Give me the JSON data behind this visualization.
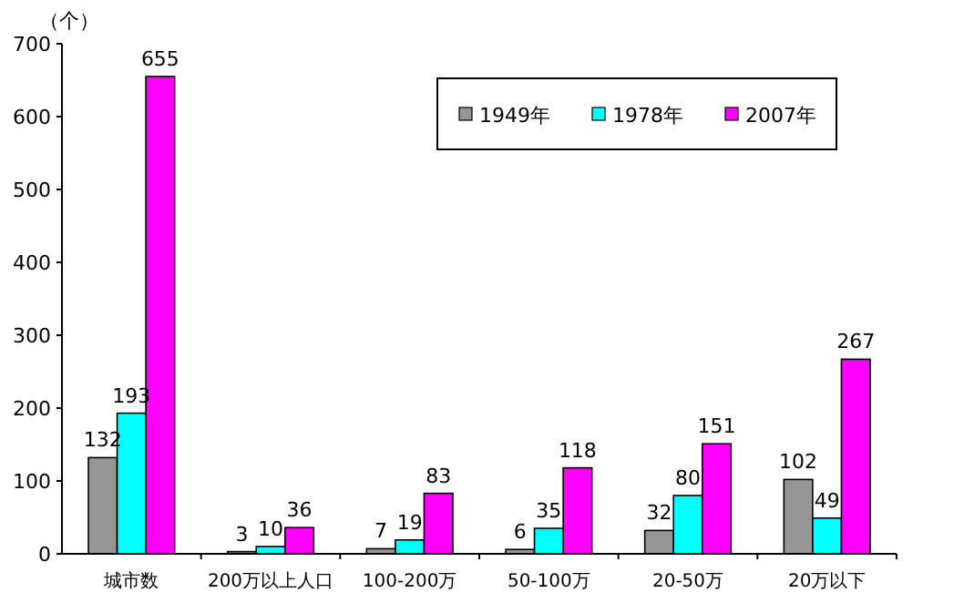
{
  "chart_data": {
    "type": "bar",
    "ylabel": "（个）",
    "categories": [
      "城市数",
      "200万以上人口",
      "100-200万",
      "50-100万",
      "20-50万",
      "20万以下"
    ],
    "series": [
      {
        "name": "1949年",
        "color": "#969696",
        "values": [
          132,
          3,
          7,
          6,
          32,
          102
        ]
      },
      {
        "name": "1978年",
        "color": "#00ffff",
        "values": [
          193,
          10,
          19,
          35,
          80,
          49
        ]
      },
      {
        "name": "2007年",
        "color": "#ff00ff",
        "values": [
          655,
          36,
          83,
          118,
          151,
          267
        ]
      }
    ],
    "ylim": [
      0,
      700
    ],
    "yticks": [
      0,
      100,
      200,
      300,
      400,
      500,
      600,
      700
    ],
    "data_labels": true,
    "legend": "top right",
    "grid": false
  }
}
